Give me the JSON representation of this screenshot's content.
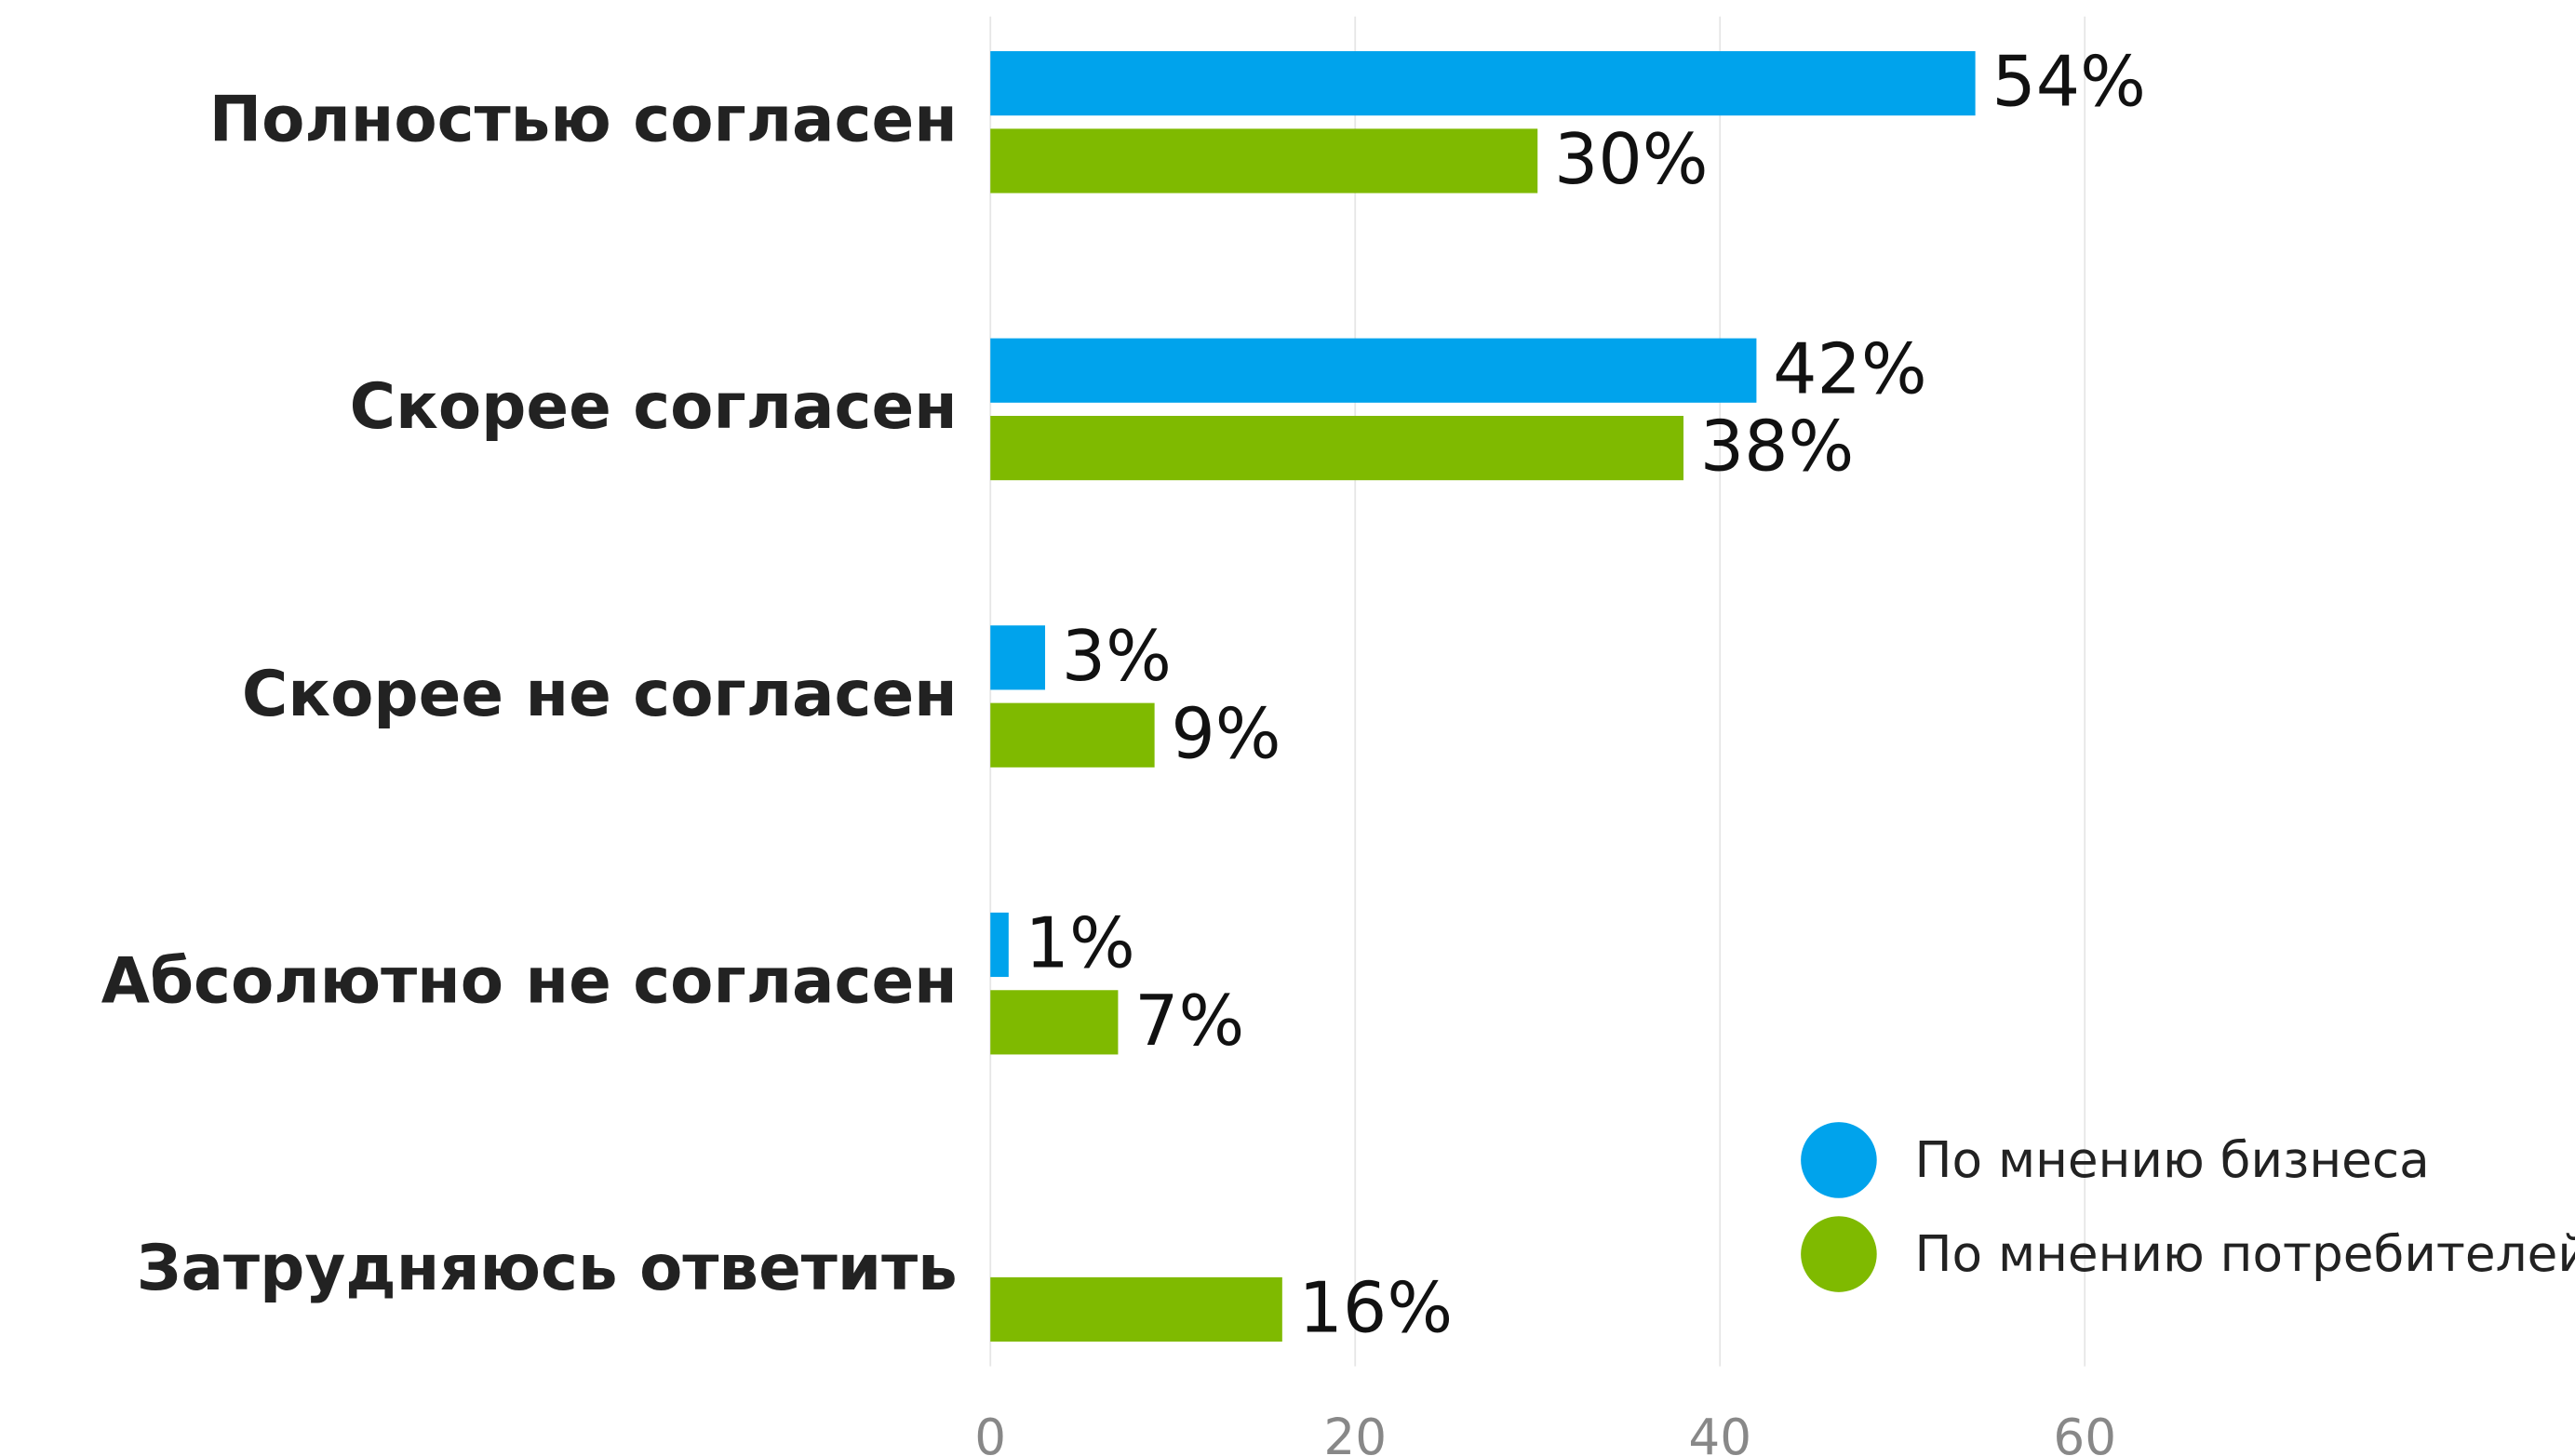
{
  "chart_data": {
    "type": "bar",
    "orientation": "horizontal",
    "categories": [
      "Полностью согласен",
      "Скорее согласен",
      "Скорее не согласен",
      "Абсолютно не согласен",
      "Затрудняюсь ответить"
    ],
    "series": [
      {
        "name": "По мнению бизнеса",
        "color": "#00a3ec",
        "values": [
          54,
          42,
          3,
          1,
          null
        ],
        "value_labels": [
          "54%",
          "42%",
          "3%",
          "1%",
          null
        ]
      },
      {
        "name": "По мнению потребителей",
        "color": "#7fba00",
        "values": [
          30,
          38,
          9,
          7,
          16
        ],
        "value_labels": [
          "30%",
          "38%",
          "9%",
          "7%",
          "16%"
        ]
      }
    ],
    "xlim": [
      0,
      80
    ],
    "xticks": [
      0,
      20,
      40,
      60
    ],
    "grid": true,
    "legend": "lower right"
  }
}
